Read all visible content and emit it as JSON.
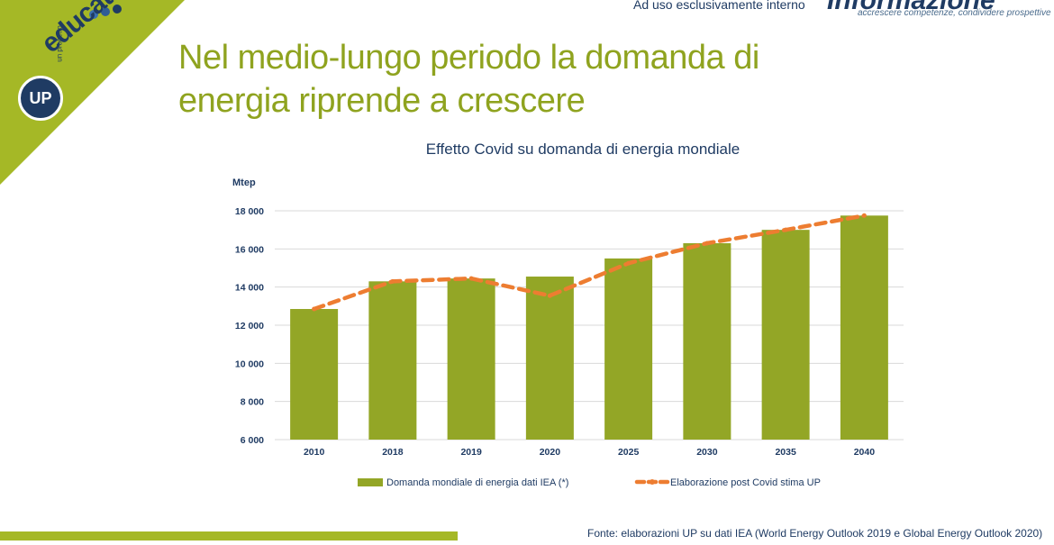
{
  "header": {
    "internal_note": "Ad uso esclusivamente interno",
    "logo_main": "Informazione",
    "logo_sub": "accrescere competenze, condividere prospettive"
  },
  "brand": {
    "project_label": "un progetto",
    "up": "UP",
    "education": "education"
  },
  "slide_title": "Nel medio-lungo periodo la domanda di energia riprende a crescere",
  "source_note": "Fonte: elaborazioni UP su dati IEA (World Energy Outlook 2019 e  Global Energy Outlook 2020)",
  "colors": {
    "bar": "#93a626",
    "line": "#ed7d31",
    "title": "#8fa31f",
    "accent": "#a5b826"
  },
  "chart_data": {
    "type": "bar",
    "title": "Effetto Covid su domanda di energia mondiale",
    "ylabel": "Mtep",
    "xlabel": "",
    "ylim": [
      6000,
      18000
    ],
    "yticks": [
      6000,
      8000,
      10000,
      12000,
      14000,
      16000,
      18000
    ],
    "ytick_labels": [
      "6 000",
      "8 000",
      "10 000",
      "12 000",
      "14 000",
      "16 000",
      "18 000"
    ],
    "grid": true,
    "legend_position": "bottom",
    "categories": [
      "2010",
      "2018",
      "2019",
      "2020",
      "2025",
      "2030",
      "2035",
      "2040"
    ],
    "series": [
      {
        "name": "Domanda mondiale di energia dati IEA (*)",
        "type": "bar",
        "values": [
          12850,
          14300,
          14450,
          14550,
          15500,
          16300,
          17000,
          17750
        ]
      },
      {
        "name": "Elaborazione post Covid stima UP",
        "type": "line",
        "style": "dashed",
        "values": [
          12850,
          14300,
          14450,
          13550,
          15250,
          16300,
          17000,
          17750
        ]
      }
    ]
  }
}
